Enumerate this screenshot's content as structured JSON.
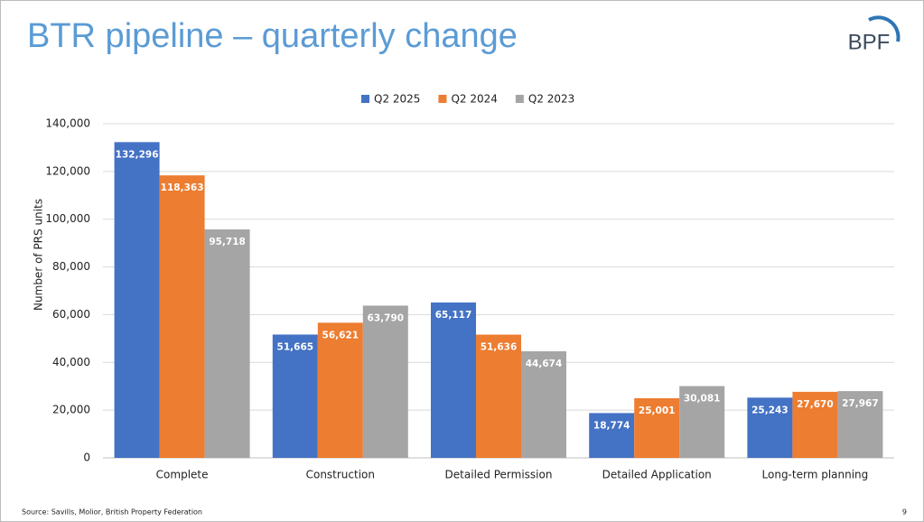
{
  "chart_data": {
    "type": "bar",
    "title": "BTR pipeline – quarterly change",
    "y_label": "Number of PRS units",
    "categories": [
      "Complete",
      "Construction",
      "Detailed Permission",
      "Detailed Application",
      "Long-term planning"
    ],
    "series": [
      {
        "name": "Q2 2025",
        "color": "#4472c4",
        "values": [
          132296,
          51665,
          65117,
          18774,
          25243
        ],
        "value_labels": [
          "132,296",
          "51,665",
          "65,117",
          "18,774",
          "25,243"
        ]
      },
      {
        "name": "Q2 2024",
        "color": "#ed7d31",
        "values": [
          118363,
          56621,
          51636,
          25001,
          27670
        ],
        "value_labels": [
          "118,363",
          "56,621",
          "51,636",
          "25,001",
          "27,670"
        ]
      },
      {
        "name": "Q2 2023",
        "color": "#a5a5a5",
        "values": [
          95718,
          63790,
          44674,
          30081,
          27967
        ],
        "value_labels": [
          "95,718",
          "63,790",
          "44,674",
          "30,081",
          "27,967"
        ]
      }
    ],
    "ylim": [
      0,
      140000
    ],
    "yticks": [
      0,
      {
        "value": 20000,
        "label": "20,000"
      },
      {
        "value": 40000,
        "label": "40,000"
      },
      {
        "value": 60000,
        "label": "60,000"
      },
      {
        "value": 80000,
        "label": "80,000"
      },
      {
        "value": 100000,
        "label": "100,000"
      },
      {
        "value": 120000,
        "label": "120,000"
      },
      {
        "value": 140000,
        "label": "140,000"
      }
    ],
    "grid": true,
    "legend": "top"
  },
  "logo": "BPF",
  "source": "Source: Savills, Molior, British Property Federation",
  "page_number": "9"
}
